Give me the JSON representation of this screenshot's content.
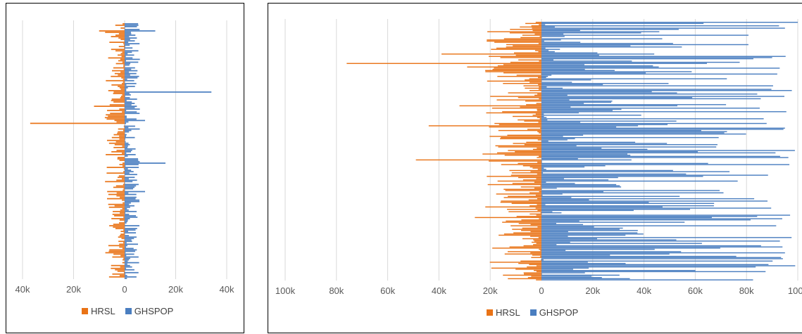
{
  "colors": {
    "hrsl": "#E97316",
    "ghspop": "#4A7EC0",
    "grid": "#D9D9D9",
    "tick_text": "#595959"
  },
  "chart_data": [
    {
      "type": "bar",
      "orientation": "horizontal-diverging",
      "title": "",
      "xlabel": "",
      "ylabel": "",
      "grid": true,
      "legend_position": "bottom",
      "xlim": [
        -40000,
        40000
      ],
      "tick_values": [
        -40000,
        -20000,
        0,
        20000,
        40000
      ],
      "tick_labels": [
        "40k",
        "20k",
        "0",
        "20k",
        "40k"
      ],
      "series": [
        {
          "name": "HRSL",
          "direction": "left"
        },
        {
          "name": "GHSPOP",
          "direction": "right"
        }
      ],
      "bar_count": 180,
      "hrsl_typical_max": 8000,
      "ghspop_typical_max": 6000,
      "hrsl_spikes": [
        [
          70,
          37000
        ],
        [
          5,
          10000
        ],
        [
          58,
          12000
        ],
        [
          101,
          7000
        ],
        [
          159,
          6000
        ]
      ],
      "ghspop_spikes": [
        [
          48,
          34000
        ],
        [
          5,
          12000
        ],
        [
          98,
          16000
        ],
        [
          118,
          8000
        ],
        [
          68,
          8000
        ]
      ]
    },
    {
      "type": "bar",
      "orientation": "horizontal-diverging",
      "title": "",
      "xlabel": "",
      "ylabel": "",
      "grid": true,
      "legend_position": "bottom",
      "xlim": [
        -100000,
        100000
      ],
      "tick_values": [
        -100000,
        -80000,
        -60000,
        -40000,
        -20000,
        0,
        20000,
        40000,
        60000,
        80000,
        100000
      ],
      "tick_labels": [
        "100k",
        "80k",
        "60k",
        "40k",
        "20k",
        "0",
        "20k",
        "40k",
        "60k",
        "80k",
        "100k"
      ],
      "series": [
        {
          "name": "HRSL",
          "direction": "left"
        },
        {
          "name": "GHSPOP",
          "direction": "right"
        }
      ],
      "bar_count": 220,
      "hrsl_typical_max": 22000,
      "ghspop_typical_max": 100000,
      "hrsl_spikes": [
        [
          35,
          76000
        ],
        [
          88,
          44000
        ],
        [
          117,
          49000
        ],
        [
          27,
          39000
        ],
        [
          71,
          32000
        ],
        [
          112,
          23000
        ],
        [
          166,
          26000
        ],
        [
          38,
          29000
        ]
      ],
      "ghspop_spikes": [
        [
          0,
          100000
        ],
        [
          90,
          95000
        ],
        [
          164,
          97000
        ],
        [
          207,
          99000
        ],
        [
          44,
          92000
        ],
        [
          30,
          90000
        ],
        [
          150,
          83000
        ],
        [
          5,
          95000
        ]
      ]
    }
  ],
  "legends": [
    {
      "items": [
        "HRSL",
        "GHSPOP"
      ]
    },
    {
      "items": [
        "HRSL",
        "GHSPOP"
      ]
    }
  ]
}
